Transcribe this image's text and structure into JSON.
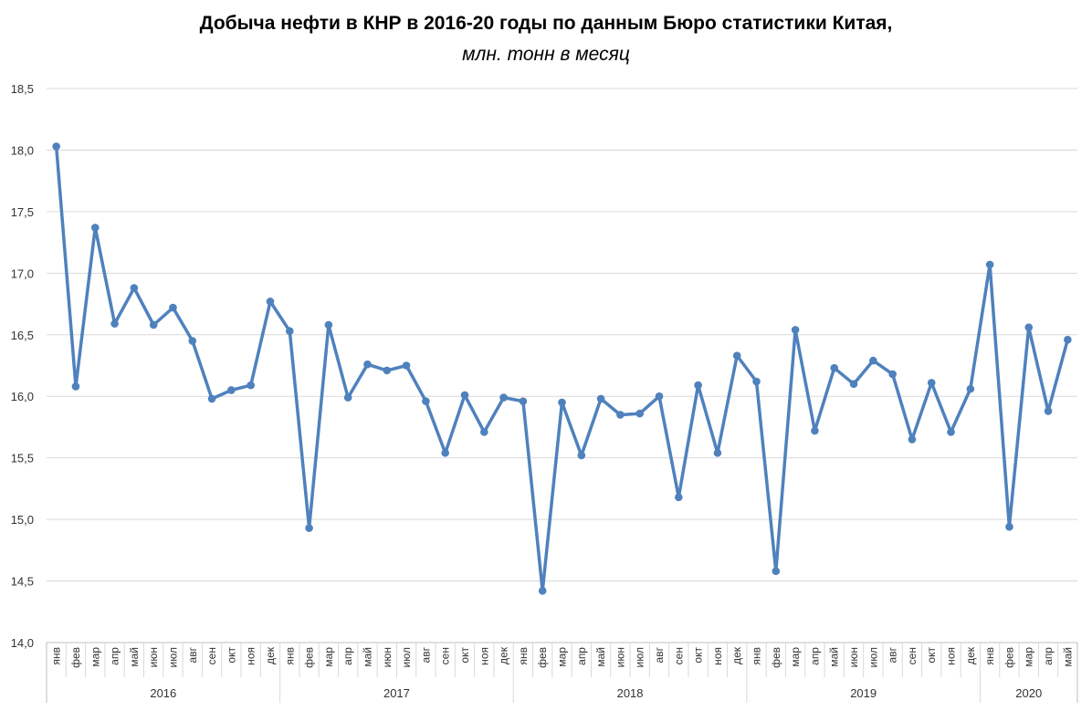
{
  "chart_data": {
    "type": "line",
    "title": "Добыча нефти в КНР в 2016-20 годы по данным Бюро статистики Китая,",
    "subtitle": "млн. тонн в месяц",
    "xlabel": "",
    "ylabel": "",
    "ylim": [
      14.0,
      18.5
    ],
    "yticks": [
      "14,0",
      "14,5",
      "15,0",
      "15,5",
      "16,0",
      "16,5",
      "17,0",
      "17,5",
      "18,0",
      "18,5"
    ],
    "grid": true,
    "legend": "none",
    "color": "#4f81bd",
    "years": [
      {
        "label": "2016",
        "months": [
          "янв",
          "фев",
          "мар",
          "апр",
          "май",
          "июн",
          "июл",
          "авг",
          "сен",
          "окт",
          "ноя",
          "дек"
        ]
      },
      {
        "label": "2017",
        "months": [
          "янв",
          "фев",
          "мар",
          "апр",
          "май",
          "июн",
          "июл",
          "авг",
          "сен",
          "окт",
          "ноя",
          "дек"
        ]
      },
      {
        "label": "2018",
        "months": [
          "янв",
          "фев",
          "мар",
          "апр",
          "май",
          "июн",
          "июл",
          "авг",
          "сен",
          "окт",
          "ноя",
          "дек"
        ]
      },
      {
        "label": "2019",
        "months": [
          "янв",
          "фев",
          "мар",
          "апр",
          "май",
          "июн",
          "июл",
          "авг",
          "сен",
          "окт",
          "ноя",
          "дек"
        ]
      },
      {
        "label": "2020",
        "months": [
          "янв",
          "фев",
          "мар",
          "апр",
          "май"
        ]
      }
    ],
    "series": [
      {
        "values": [
          18.03,
          16.08,
          17.37,
          16.59,
          16.88,
          16.58,
          16.72,
          16.45,
          15.98,
          16.05,
          16.09,
          16.77,
          16.53,
          14.93,
          16.58,
          15.99,
          16.26,
          16.21,
          16.25,
          15.96,
          15.54,
          16.01,
          15.71,
          15.99,
          15.96,
          14.42,
          15.95,
          15.52,
          15.98,
          15.85,
          15.86,
          16.0,
          15.18,
          16.09,
          15.54,
          16.33,
          16.12,
          14.58,
          16.54,
          15.72,
          16.23,
          16.1,
          16.29,
          16.18,
          15.65,
          16.11,
          15.71,
          16.06,
          17.07,
          14.94,
          16.56,
          15.88,
          16.46
        ]
      }
    ]
  }
}
